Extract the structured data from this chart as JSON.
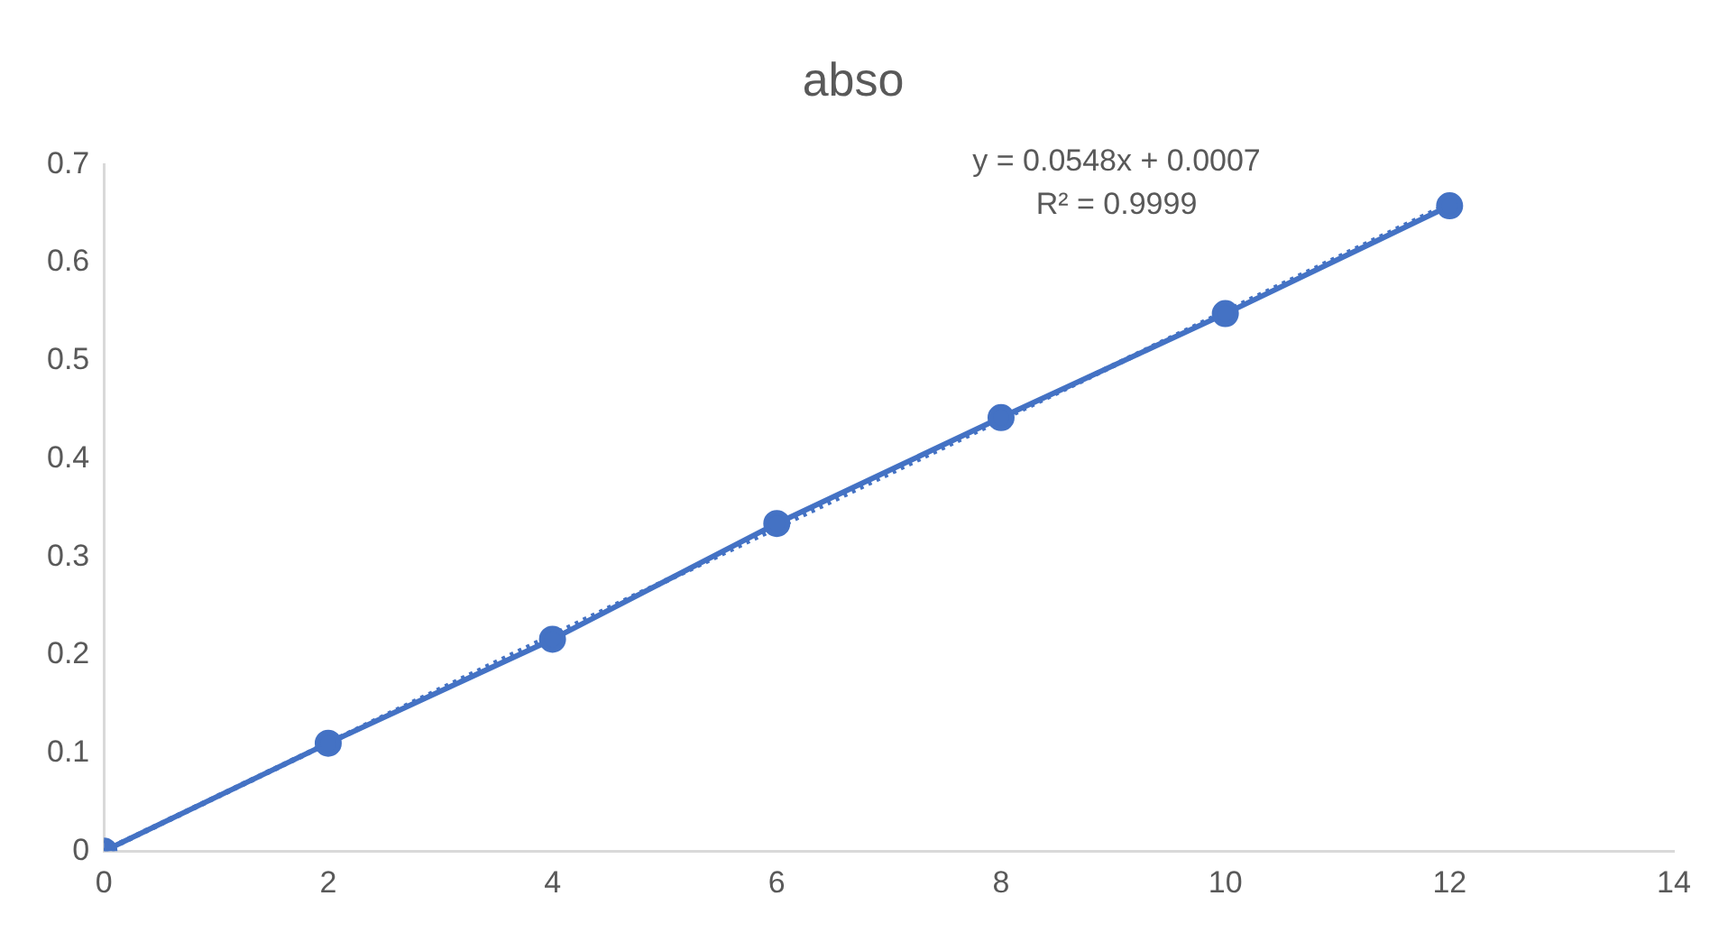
{
  "chart_data": {
    "type": "line",
    "title": "abso",
    "x": [
      0,
      2,
      4,
      6,
      8,
      10,
      12
    ],
    "series": [
      {
        "color": "#4472c4",
        "values": [
          0,
          0.11,
          0.216,
          0.334,
          0.442,
          0.548,
          0.658
        ],
        "marker": "circle",
        "line_style": "solid"
      },
      {
        "color": "#4472c4",
        "x": [
          0,
          12
        ],
        "values": [
          0.0,
          0.66
        ],
        "line_style": "dotted"
      }
    ],
    "xlim": [
      0,
      14
    ],
    "xticks": [
      0,
      2,
      4,
      6,
      8,
      10,
      12,
      14
    ],
    "ylim": [
      0,
      0.7
    ],
    "yticks": [
      0,
      0.1,
      0.2,
      0.3,
      0.4,
      0.5,
      0.6,
      0.7
    ],
    "grid": false,
    "legend": false,
    "annotations": [
      "y = 0.0548x + 0.0007",
      "R² = 0.9999"
    ]
  }
}
